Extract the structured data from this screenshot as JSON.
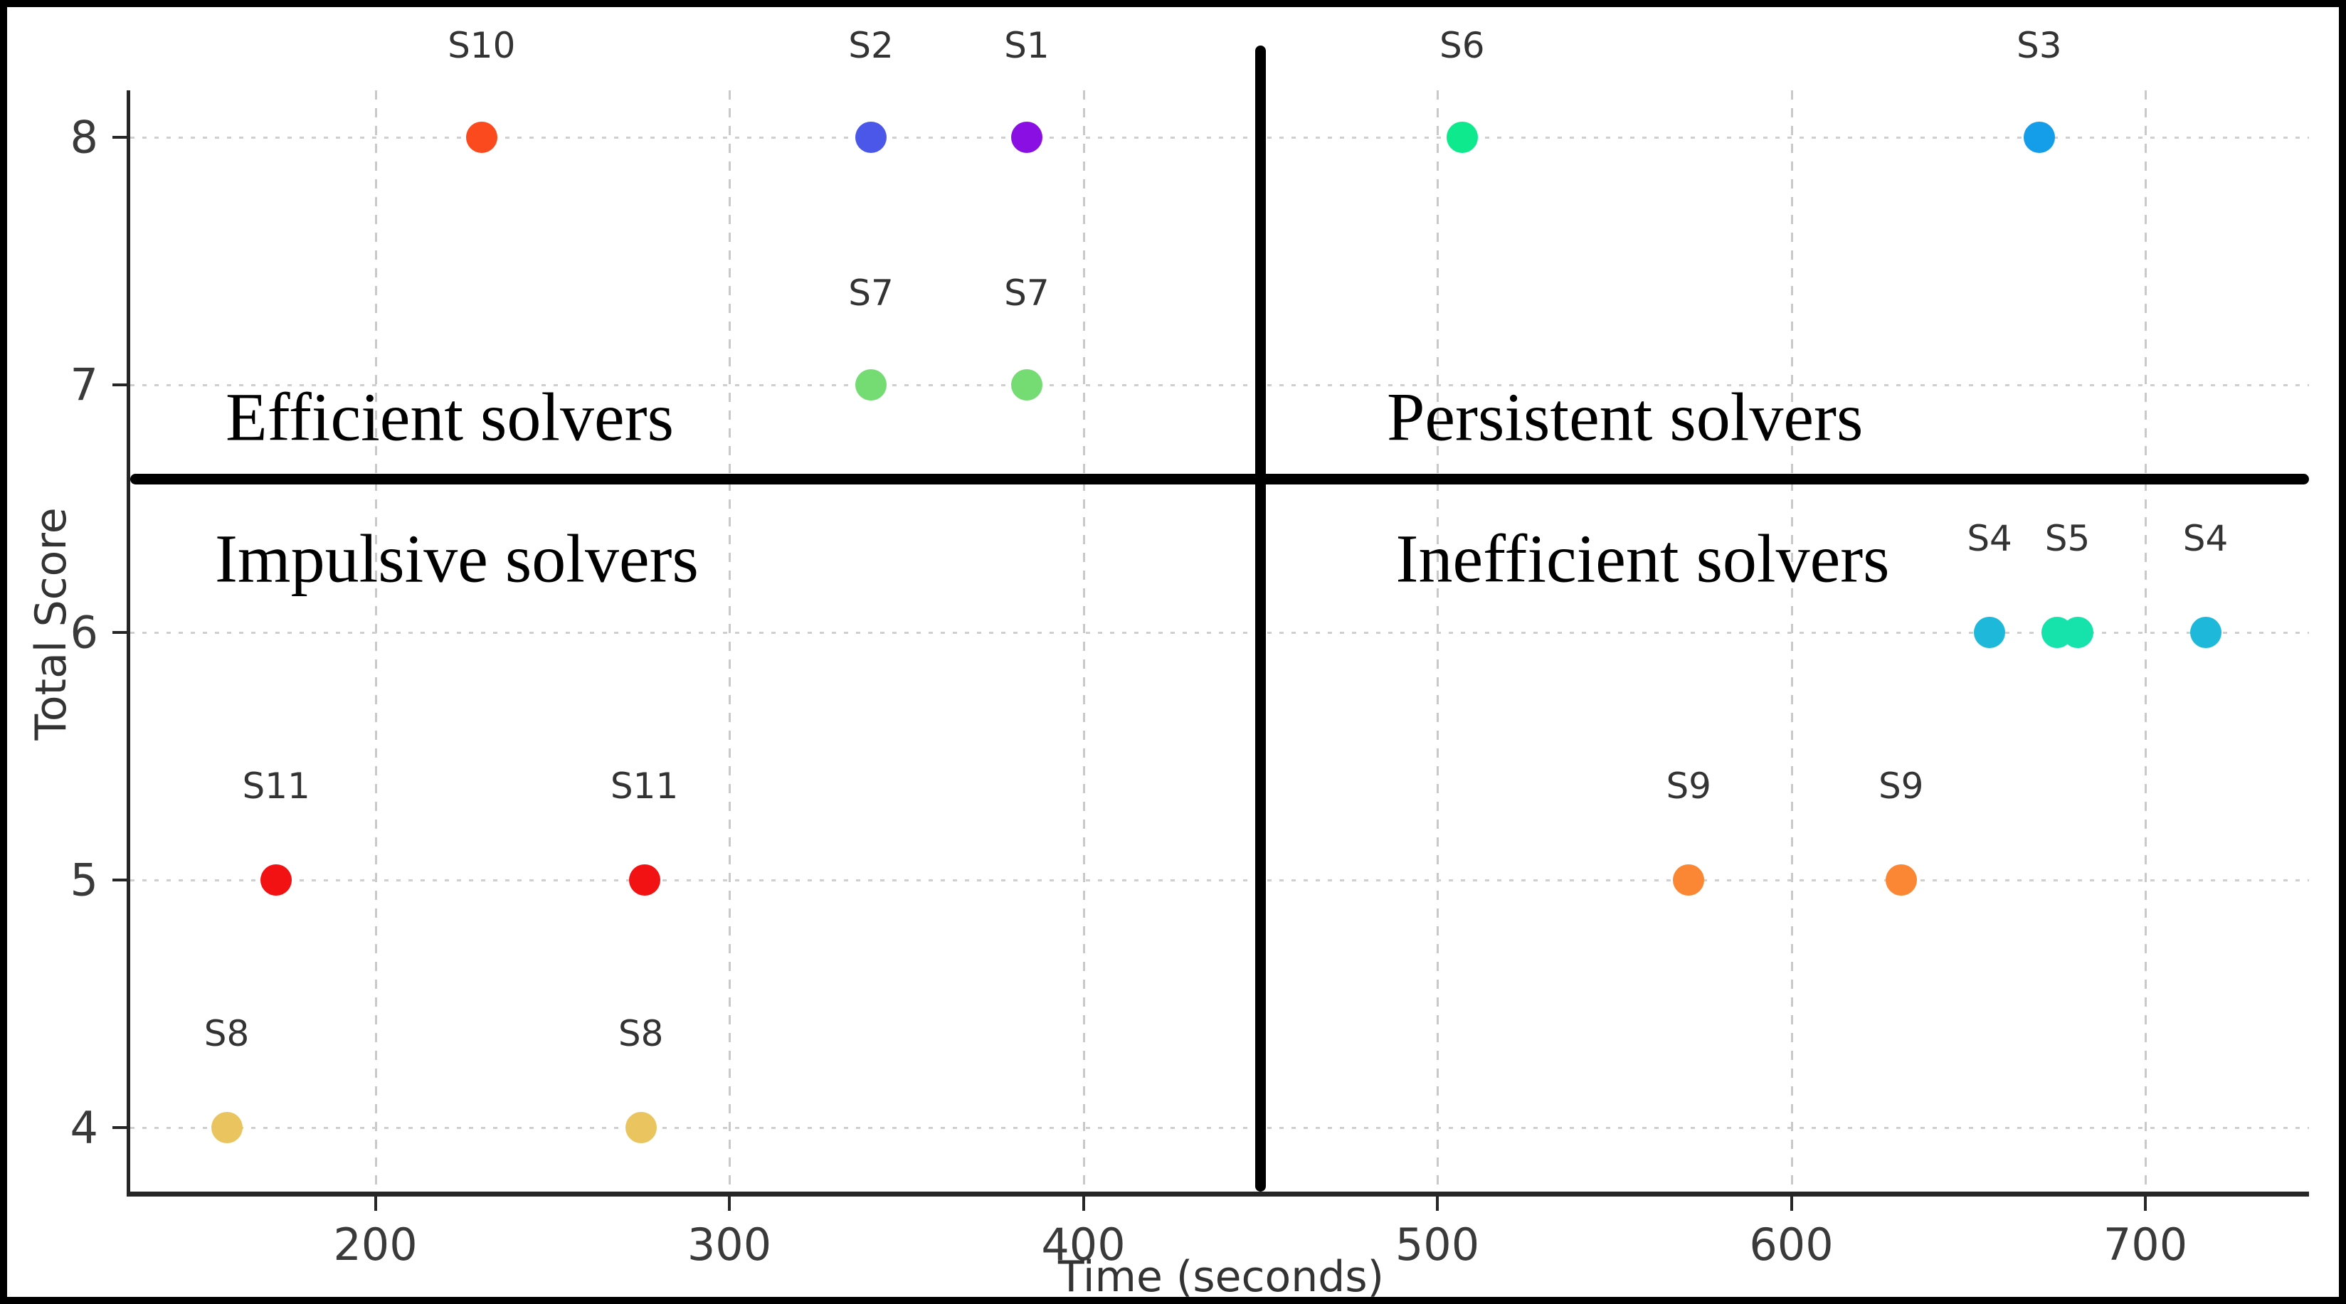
{
  "chart_data": {
    "type": "scatter",
    "title": "",
    "xlabel": "Time (seconds)",
    "ylabel": "Total Score",
    "x_ticks": [
      200,
      300,
      400,
      500,
      600,
      700
    ],
    "y_ticks": [
      4,
      5,
      6,
      7,
      8
    ],
    "xlim": [
      131,
      746
    ],
    "ylim": [
      3.74,
      8.19
    ],
    "grid": true,
    "legend_position": "none",
    "points": [
      {
        "label": "S10",
        "time": 230,
        "score": 8,
        "color": "#fb4a1d"
      },
      {
        "label": "S2",
        "time": 340,
        "score": 8,
        "color": "#4a57e8"
      },
      {
        "label": "S1",
        "time": 384,
        "score": 8,
        "color": "#8a0fe3"
      },
      {
        "label": "S6",
        "time": 507,
        "score": 8,
        "color": "#0de98c"
      },
      {
        "label": "S3",
        "time": 670,
        "score": 8,
        "color": "#149de8"
      },
      {
        "label": "S7",
        "time": 340,
        "score": 7,
        "color": "#74dc72"
      },
      {
        "label": "S7",
        "time": 384,
        "score": 7,
        "color": "#74dc72"
      },
      {
        "label": "S4",
        "time": 656,
        "score": 6,
        "color": "#1eb9da"
      },
      {
        "label": "S5",
        "time": 675,
        "score": 6,
        "color": "#15e3ab"
      },
      {
        "label": "S5",
        "time": 681,
        "score": 6,
        "color": "#15e3ab"
      },
      {
        "label": "S4",
        "time": 717,
        "score": 6,
        "color": "#1eb9da"
      },
      {
        "label": "S9",
        "time": 571,
        "score": 5,
        "color": "#fb8634"
      },
      {
        "label": "S9",
        "time": 631,
        "score": 5,
        "color": "#fb8634"
      },
      {
        "label": "S11",
        "time": 172,
        "score": 5,
        "color": "#f21113"
      },
      {
        "label": "S11",
        "time": 276,
        "score": 5,
        "color": "#f21113"
      },
      {
        "label": "S8",
        "time": 158,
        "score": 4,
        "color": "#e9c45f"
      },
      {
        "label": "S8",
        "time": 275,
        "score": 4,
        "color": "#e9c45f"
      }
    ],
    "annotations": [
      {
        "text": "S10",
        "time": 230,
        "score": 8.37
      },
      {
        "text": "S2",
        "time": 340,
        "score": 8.37
      },
      {
        "text": "S1",
        "time": 384,
        "score": 8.37
      },
      {
        "text": "S6",
        "time": 507,
        "score": 8.37
      },
      {
        "text": "S3",
        "time": 670,
        "score": 8.37
      },
      {
        "text": "S7",
        "time": 340,
        "score": 7.37
      },
      {
        "text": "S7",
        "time": 384,
        "score": 7.37
      },
      {
        "text": "S4",
        "time": 656,
        "score": 6.38
      },
      {
        "text": "S5",
        "time": 678,
        "score": 6.38
      },
      {
        "text": "S4",
        "time": 717,
        "score": 6.38
      },
      {
        "text": "S9",
        "time": 571,
        "score": 5.38
      },
      {
        "text": "S9",
        "time": 631,
        "score": 5.38
      },
      {
        "text": "S11",
        "time": 172,
        "score": 5.38
      },
      {
        "text": "S11",
        "time": 276,
        "score": 5.38
      },
      {
        "text": "S8",
        "time": 158,
        "score": 4.38
      },
      {
        "text": "S8",
        "time": 275,
        "score": 4.38
      }
    ],
    "dividers": {
      "time": 450,
      "score": 6.62
    },
    "quadrant_labels": [
      {
        "id": "efficient",
        "text": "Efficient solvers",
        "time": 221,
        "score": 6.87
      },
      {
        "id": "persistent",
        "text": "Persistent solvers",
        "time": 553,
        "score": 6.87
      },
      {
        "id": "impulsive",
        "text": "Impulsive solvers",
        "time": 223,
        "score": 6.3
      },
      {
        "id": "inefficient",
        "text": "Inefficient solvers",
        "time": 558,
        "score": 6.3
      }
    ]
  },
  "style": {
    "background": "#ffffff",
    "figure_border": "#000000",
    "spine_color": "#262626",
    "grid_color": "#c9c9c9",
    "tick_text_color": "#3a3a3a",
    "annotation_text_color": "#333333",
    "quadrant_text_color": "#000000",
    "divider_color": "#000000"
  }
}
